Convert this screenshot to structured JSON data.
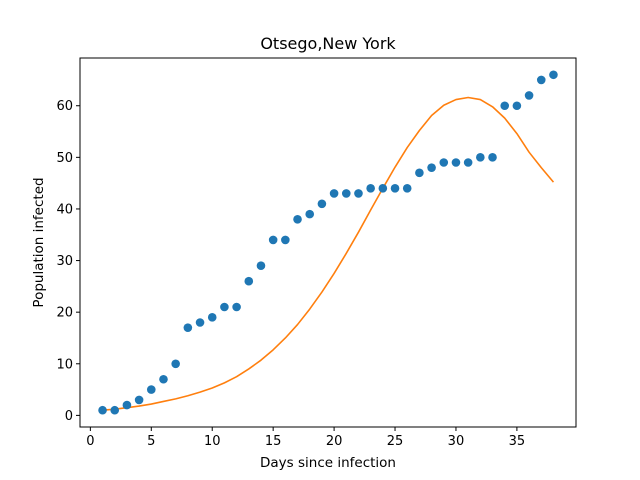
{
  "chart_data": {
    "type": "scatter",
    "title": "Otsego,New York",
    "xlabel": "Days since infection",
    "ylabel": "Population infected",
    "xlim": [
      -0.85,
      39.85
    ],
    "ylim": [
      -2.25,
      69.25
    ],
    "xticks": [
      0,
      5,
      10,
      15,
      20,
      25,
      30,
      35
    ],
    "yticks": [
      0,
      10,
      20,
      30,
      40,
      50,
      60
    ],
    "grid": false,
    "series": [
      {
        "kind": "scatter",
        "color": "#1f77b4",
        "x": [
          1,
          2,
          3,
          4,
          5,
          6,
          7,
          8,
          9,
          10,
          11,
          12,
          13,
          14,
          15,
          16,
          17,
          18,
          19,
          20,
          21,
          22,
          23,
          24,
          25,
          26,
          27,
          28,
          29,
          30,
          31,
          32,
          33,
          34,
          35,
          36,
          37,
          38
        ],
        "y": [
          1,
          1,
          2,
          3,
          5,
          7,
          10,
          17,
          18,
          19,
          21,
          21,
          26,
          29,
          34,
          34,
          38,
          39,
          41,
          43,
          43,
          43,
          44,
          44,
          44,
          44,
          47,
          48,
          49,
          49,
          49,
          50,
          50,
          60,
          60,
          62,
          65,
          66
        ]
      },
      {
        "kind": "line",
        "color": "#ff7f0e",
        "x": [
          1,
          2,
          3,
          4,
          5,
          6,
          7,
          8,
          9,
          10,
          11,
          12,
          13,
          14,
          15,
          16,
          17,
          18,
          19,
          20,
          21,
          22,
          23,
          24,
          25,
          26,
          27,
          28,
          29,
          30,
          31,
          32,
          33,
          34,
          35,
          36,
          37,
          38
        ],
        "y": [
          1.0,
          1.2,
          1.5,
          1.8,
          2.2,
          2.7,
          3.2,
          3.8,
          4.5,
          5.3,
          6.3,
          7.5,
          9.0,
          10.7,
          12.7,
          15.0,
          17.6,
          20.6,
          23.9,
          27.5,
          31.4,
          35.5,
          39.8,
          44.0,
          48.1,
          51.9,
          55.2,
          58.1,
          60.1,
          61.2,
          61.6,
          61.2,
          59.8,
          57.6,
          54.6,
          51.0,
          48.0,
          45.2
        ]
      }
    ]
  }
}
